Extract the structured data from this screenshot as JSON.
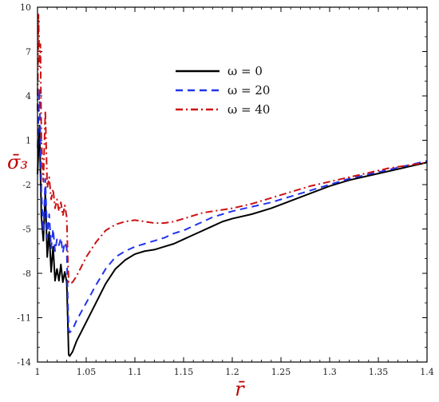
{
  "chart_data": {
    "type": "line",
    "xlabel": "r̄",
    "ylabel": "σ̄₃",
    "xlim": [
      1.0,
      1.4
    ],
    "ylim": [
      -14,
      10
    ],
    "xticks": [
      1,
      1.05,
      1.1,
      1.15,
      1.2,
      1.25,
      1.3,
      1.35,
      1.4
    ],
    "xtick_labels": [
      "1",
      "1.05",
      "1.1",
      "1.15",
      "1.2",
      "1.25",
      "1.3",
      "1.35",
      "1.4"
    ],
    "yticks": [
      10,
      7,
      4,
      1,
      -2,
      -5,
      -8,
      -11,
      -14
    ],
    "ytick_labels": [
      "10",
      "7",
      "4",
      "1",
      "-2",
      "-5",
      "-8",
      "-11",
      "-14"
    ],
    "legend_position": "top-center",
    "axis_color": "#c00000",
    "series": [
      {
        "name": "ω = 0",
        "color": "#000000",
        "dash": "solid",
        "x": [
          1.0,
          1.002,
          1.004,
          1.006,
          1.008,
          1.01,
          1.012,
          1.014,
          1.016,
          1.018,
          1.02,
          1.022,
          1.024,
          1.026,
          1.028,
          1.03,
          1.031,
          1.032,
          1.033,
          1.036,
          1.04,
          1.05,
          1.06,
          1.07,
          1.08,
          1.09,
          1.1,
          1.11,
          1.12,
          1.13,
          1.14,
          1.15,
          1.16,
          1.17,
          1.18,
          1.19,
          1.2,
          1.22,
          1.24,
          1.26,
          1.28,
          1.3,
          1.32,
          1.34,
          1.36,
          1.38,
          1.4
        ],
        "y": [
          -1.3,
          2.0,
          -4.2,
          -5.8,
          -2.6,
          -6.9,
          -5.2,
          -7.9,
          -6.2,
          -8.5,
          -7.7,
          -8.5,
          -7.4,
          -8.6,
          -7.9,
          -8.6,
          -11.0,
          -13.5,
          -13.6,
          -13.3,
          -12.6,
          -11.3,
          -10.0,
          -8.7,
          -7.7,
          -7.1,
          -6.7,
          -6.5,
          -6.4,
          -6.2,
          -6.0,
          -5.7,
          -5.4,
          -5.1,
          -4.8,
          -4.5,
          -4.3,
          -4.0,
          -3.6,
          -3.1,
          -2.6,
          -2.1,
          -1.7,
          -1.4,
          -1.1,
          -0.8,
          -0.5
        ]
      },
      {
        "name": "ω = 20",
        "color": "#2233ee",
        "dash": "dashed",
        "x": [
          1.0,
          1.002,
          1.004,
          1.006,
          1.008,
          1.01,
          1.012,
          1.014,
          1.016,
          1.018,
          1.02,
          1.022,
          1.024,
          1.026,
          1.028,
          1.03,
          1.031,
          1.032,
          1.033,
          1.036,
          1.04,
          1.05,
          1.06,
          1.07,
          1.08,
          1.09,
          1.1,
          1.11,
          1.12,
          1.13,
          1.14,
          1.15,
          1.16,
          1.17,
          1.18,
          1.19,
          1.2,
          1.22,
          1.24,
          1.26,
          1.28,
          1.3,
          1.32,
          1.34,
          1.36,
          1.38,
          1.4
        ],
        "y": [
          0.5,
          4.5,
          -2.5,
          -5.2,
          -1.6,
          -5.6,
          -4.0,
          -6.3,
          -5.0,
          -6.5,
          -5.7,
          -6.1,
          -5.6,
          -6.6,
          -5.9,
          -6.3,
          -9.5,
          -11.8,
          -12.0,
          -11.8,
          -11.2,
          -10.0,
          -8.8,
          -7.7,
          -6.9,
          -6.5,
          -6.2,
          -6.0,
          -5.8,
          -5.6,
          -5.3,
          -5.1,
          -4.8,
          -4.5,
          -4.2,
          -4.0,
          -3.8,
          -3.5,
          -3.2,
          -2.8,
          -2.4,
          -2.0,
          -1.6,
          -1.3,
          -1.0,
          -0.7,
          -0.4
        ]
      },
      {
        "name": "ω = 40",
        "color": "#cc1111",
        "dash": "dashdot",
        "x": [
          1.0,
          1.001,
          1.002,
          1.003,
          1.004,
          1.006,
          1.008,
          1.01,
          1.012,
          1.014,
          1.016,
          1.018,
          1.02,
          1.022,
          1.024,
          1.026,
          1.028,
          1.03,
          1.031,
          1.032,
          1.033,
          1.036,
          1.04,
          1.05,
          1.06,
          1.07,
          1.08,
          1.09,
          1.1,
          1.11,
          1.12,
          1.13,
          1.14,
          1.15,
          1.16,
          1.17,
          1.18,
          1.19,
          1.2,
          1.22,
          1.24,
          1.26,
          1.28,
          1.3,
          1.32,
          1.34,
          1.36,
          1.38,
          1.4
        ],
        "y": [
          3.0,
          9.5,
          6.0,
          7.5,
          1.0,
          -1.8,
          3.0,
          -2.2,
          -1.5,
          -3.0,
          -2.3,
          -3.6,
          -3.0,
          -3.8,
          -3.2,
          -4.1,
          -3.4,
          -4.2,
          -6.8,
          -8.6,
          -8.7,
          -8.6,
          -8.2,
          -6.9,
          -5.9,
          -5.1,
          -4.7,
          -4.5,
          -4.4,
          -4.5,
          -4.6,
          -4.6,
          -4.5,
          -4.3,
          -4.1,
          -3.9,
          -3.8,
          -3.7,
          -3.6,
          -3.3,
          -2.9,
          -2.5,
          -2.1,
          -1.8,
          -1.5,
          -1.2,
          -0.9,
          -0.7,
          -0.5
        ]
      }
    ]
  }
}
